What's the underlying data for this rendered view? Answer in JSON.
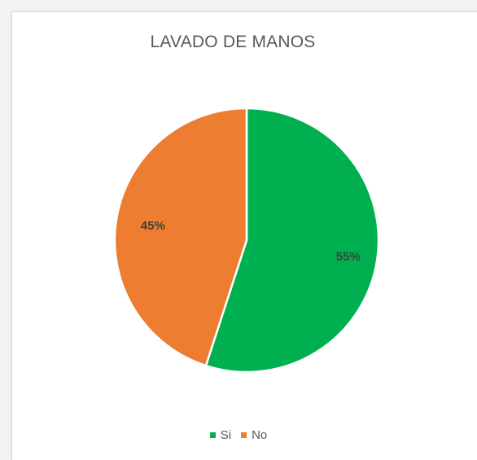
{
  "chart_data": {
    "type": "pie",
    "title": "LAVADO DE MANOS",
    "categories": [
      "Si",
      "No"
    ],
    "values": [
      55,
      45
    ],
    "labels": [
      "55%",
      "45%"
    ],
    "colors": [
      "#00b050",
      "#ed7d31"
    ],
    "legend": "bottom"
  }
}
